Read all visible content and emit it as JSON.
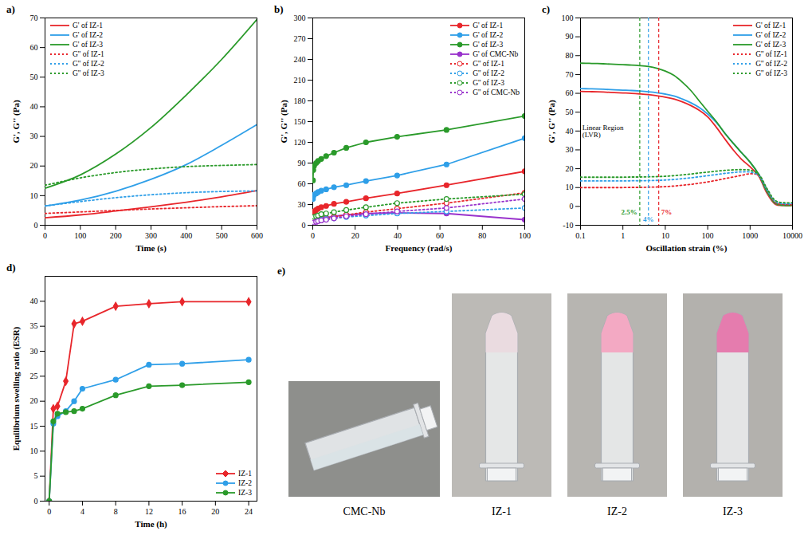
{
  "chart_data": [
    {
      "type": "line",
      "title": "a)",
      "x_label": "Time (s)",
      "y_label": "G', G'' (Pa)",
      "x": [
        0,
        100,
        200,
        300,
        400,
        500,
        600
      ],
      "xlim": [
        0,
        600
      ],
      "xticks": [
        0,
        100,
        200,
        300,
        400,
        500,
        600
      ],
      "ylim": [
        0,
        70
      ],
      "yticks": [
        0,
        10,
        20,
        30,
        40,
        50,
        60,
        70
      ],
      "grid": false,
      "legend": "top-left",
      "series": [
        {
          "name": "G' of IZ-1",
          "color": "#e8262b",
          "line_style": "solid",
          "values": [
            2.5,
            3.5,
            4.8,
            6.2,
            7.8,
            9.6,
            11.7
          ]
        },
        {
          "name": "G' of IZ-2",
          "color": "#2f9fe8",
          "line_style": "solid",
          "values": [
            6.5,
            8.5,
            11.5,
            15.5,
            20.5,
            27,
            34
          ]
        },
        {
          "name": "G' of IZ-3",
          "color": "#2a9a2a",
          "line_style": "solid",
          "values": [
            12.5,
            17,
            24,
            33,
            44,
            56,
            69.5
          ]
        },
        {
          "name": "G'' of IZ-1",
          "color": "#e8262b",
          "line_style": "dotted",
          "values": [
            4.0,
            4.5,
            5.0,
            5.5,
            5.9,
            6.3,
            6.6
          ]
        },
        {
          "name": "G'' of IZ-2",
          "color": "#2f9fe8",
          "line_style": "dotted",
          "values": [
            6.5,
            8.0,
            9.3,
            10.3,
            11.0,
            11.4,
            11.6
          ]
        },
        {
          "name": "G'' of IZ-3",
          "color": "#2a9a2a",
          "line_style": "dotted",
          "values": [
            13.5,
            16.0,
            17.8,
            19.0,
            19.8,
            20.2,
            20.5
          ]
        }
      ]
    },
    {
      "type": "line",
      "title": "b)",
      "x_label": "Frequency (rad/s)",
      "y_label": "G', G'' (Pa)",
      "x": [
        0.1,
        0.25,
        0.63,
        1.58,
        2.5,
        4,
        6.3,
        10,
        15.8,
        25.1,
        39.8,
        63.1,
        100
      ],
      "xlim": [
        0,
        100
      ],
      "xticks": [
        0,
        20,
        40,
        60,
        80,
        100
      ],
      "ylim": [
        0,
        300
      ],
      "yticks": [
        0,
        30,
        60,
        90,
        120,
        150,
        180,
        210,
        240,
        270,
        300
      ],
      "grid": false,
      "legend": "top-right",
      "series": [
        {
          "name": "G' of IZ-1",
          "color": "#e8262b",
          "line_style": "solid",
          "marker": "circle",
          "values": [
            15,
            18,
            20,
            22,
            24,
            26,
            28,
            31,
            34,
            39,
            46,
            58,
            78
          ]
        },
        {
          "name": "G' of IZ-2",
          "color": "#2f9fe8",
          "line_style": "solid",
          "marker": "circle",
          "values": [
            38,
            42,
            44,
            46,
            48,
            50,
            52,
            55,
            58,
            64,
            72,
            88,
            126
          ]
        },
        {
          "name": "G' of IZ-3",
          "color": "#2a9a2a",
          "line_style": "solid",
          "marker": "circle",
          "values": [
            65,
            80,
            86,
            90,
            93,
            96,
            100,
            105,
            112,
            120,
            128,
            138,
            158
          ]
        },
        {
          "name": "G' of CMC-Nb",
          "color": "#9932cc",
          "line_style": "solid",
          "marker": "circle",
          "values": [
            3,
            5,
            7,
            8,
            9,
            10,
            11,
            13,
            15,
            17,
            18,
            17,
            8
          ]
        },
        {
          "name": "G'' of IZ-1",
          "color": "#e8262b",
          "line_style": "dotted",
          "marker": "circle-open",
          "values": [
            4,
            5,
            6,
            7,
            8,
            9,
            10,
            12,
            15,
            19,
            24,
            32,
            47
          ]
        },
        {
          "name": "G'' of IZ-2",
          "color": "#2f9fe8",
          "line_style": "dotted",
          "marker": "circle-open",
          "values": [
            3,
            4,
            5,
            6,
            7,
            8,
            9,
            10,
            12,
            14,
            17,
            20,
            25
          ]
        },
        {
          "name": "G'' of IZ-3",
          "color": "#2a9a2a",
          "line_style": "dotted",
          "marker": "circle-open",
          "values": [
            8,
            10,
            12,
            13,
            14,
            16,
            17,
            19,
            22,
            26,
            32,
            38,
            45
          ]
        },
        {
          "name": "G'' of CMC-Nb",
          "color": "#9932cc",
          "line_style": "dotted",
          "marker": "circle-open",
          "values": [
            2,
            3,
            4,
            5,
            6,
            7,
            8,
            10,
            13,
            16,
            20,
            25,
            38
          ]
        }
      ]
    },
    {
      "type": "line",
      "title": "c)",
      "x_label": "Oscillation strain (%)",
      "y_label": "G', G'' (Pa)",
      "log": "x",
      "x": [
        0.1,
        0.16,
        0.25,
        0.4,
        0.63,
        1,
        1.6,
        2.5,
        4,
        6.3,
        10,
        16,
        25,
        40,
        63,
        100,
        160,
        250,
        400,
        630,
        1000,
        1600,
        2500,
        4000,
        6300,
        10000
      ],
      "xlim": [
        0.1,
        10000
      ],
      "xticks": [
        0.1,
        1,
        10,
        100,
        1000,
        10000
      ],
      "ylim": [
        -10,
        100
      ],
      "yticks": [
        -10,
        0,
        10,
        20,
        30,
        40,
        50,
        60,
        70,
        80,
        90,
        100
      ],
      "grid": false,
      "legend": "top-right",
      "series": [
        {
          "name": "G' of IZ-1",
          "color": "#e8262b",
          "line_style": "solid",
          "values": [
            61,
            60.9,
            60.8,
            60.6,
            60.4,
            60.2,
            60,
            59.7,
            59.3,
            58.7,
            58,
            57,
            55.5,
            53.5,
            51,
            47.5,
            42,
            36,
            30,
            25,
            21,
            16,
            7,
            1,
            0.5,
            0.5
          ]
        },
        {
          "name": "G' of IZ-2",
          "color": "#2f9fe8",
          "line_style": "solid",
          "values": [
            62.5,
            62.4,
            62.3,
            62.1,
            61.9,
            61.7,
            61.5,
            61.2,
            60.8,
            60.3,
            59.6,
            58.6,
            57,
            55,
            52.5,
            49,
            44.5,
            39,
            33.5,
            28.5,
            23.5,
            17,
            8,
            1.5,
            1,
            1
          ]
        },
        {
          "name": "G' of IZ-3",
          "color": "#2a9a2a",
          "line_style": "solid",
          "values": [
            76,
            75.9,
            75.8,
            75.6,
            75.4,
            75.2,
            75,
            74.7,
            74.2,
            73.3,
            71.8,
            69.5,
            66,
            61.5,
            56,
            50.5,
            45,
            39,
            33.5,
            28.5,
            23.5,
            17,
            8,
            1.5,
            0.5,
            0.5
          ]
        },
        {
          "name": "G'' of IZ-1",
          "color": "#e8262b",
          "line_style": "dotted",
          "values": [
            10,
            10,
            10,
            10,
            10,
            10,
            10.1,
            10.1,
            10.2,
            10.3,
            10.5,
            10.8,
            11.2,
            11.7,
            12.3,
            13,
            13.8,
            14.7,
            15.6,
            16.5,
            17.3,
            16.5,
            9,
            2,
            1,
            1
          ]
        },
        {
          "name": "G'' of IZ-2",
          "color": "#2f9fe8",
          "line_style": "dotted",
          "values": [
            13.5,
            13.5,
            13.5,
            13.5,
            13.5,
            13.5,
            13.6,
            13.6,
            13.7,
            13.8,
            14,
            14.3,
            14.7,
            15.2,
            15.7,
            16.3,
            16.9,
            17.5,
            18,
            18.3,
            18.2,
            16.5,
            9,
            2.5,
            1.5,
            1.5
          ]
        },
        {
          "name": "G'' of IZ-3",
          "color": "#2a9a2a",
          "line_style": "dotted",
          "values": [
            15.5,
            15.5,
            15.5,
            15.5,
            15.5,
            15.5,
            15.6,
            15.6,
            15.7,
            15.8,
            16,
            16.3,
            16.7,
            17.2,
            17.7,
            18.2,
            18.7,
            19.1,
            19.4,
            19.5,
            19.2,
            17,
            9.5,
            3,
            2,
            2
          ]
        }
      ],
      "reference_lines": [
        {
          "x": 2.5,
          "label": "2.5%",
          "color": "#2a9a2a"
        },
        {
          "x": 4,
          "label": "4%",
          "color": "#2f9fe8"
        },
        {
          "x": 7,
          "label": "7%",
          "color": "#e8262b"
        }
      ],
      "annotations": [
        {
          "text": "Linear Region (LVR)",
          "x": 0.11,
          "y": 40
        }
      ]
    },
    {
      "type": "line",
      "title": "d)",
      "x_label": "Time (h)",
      "y_label": "Equilibrium swelling ratio (ESR)",
      "x": [
        0,
        0.5,
        1,
        2,
        3,
        4,
        8,
        12,
        16,
        24
      ],
      "xlim": [
        -0.5,
        25
      ],
      "xticks": [
        0,
        4,
        8,
        12,
        16,
        20,
        24
      ],
      "ylim": [
        0,
        45
      ],
      "yticks": [
        0,
        5,
        10,
        15,
        20,
        25,
        30,
        35,
        40
      ],
      "grid": false,
      "legend": "bottom-right",
      "series": [
        {
          "name": "IZ-1",
          "color": "#e8262b",
          "line_style": "solid",
          "marker": "diamond",
          "values": [
            0,
            18.5,
            19,
            24,
            35.5,
            36,
            39,
            39.5,
            39.9,
            39.9
          ]
        },
        {
          "name": "IZ-2",
          "color": "#2f9fe8",
          "line_style": "solid",
          "marker": "circle",
          "values": [
            0,
            15.5,
            17,
            18,
            20,
            22.5,
            24.3,
            27.3,
            27.5,
            28.3
          ]
        },
        {
          "name": "IZ-3",
          "color": "#2a9a2a",
          "line_style": "solid",
          "marker": "circle",
          "values": [
            0,
            16,
            17.5,
            17.8,
            18,
            18.5,
            21.2,
            23,
            23.2,
            23.8
          ]
        }
      ]
    }
  ],
  "panel_e": {
    "title": "e)",
    "labels": [
      "CMC-Nb",
      "IZ-1",
      "IZ-2",
      "IZ-3"
    ]
  }
}
